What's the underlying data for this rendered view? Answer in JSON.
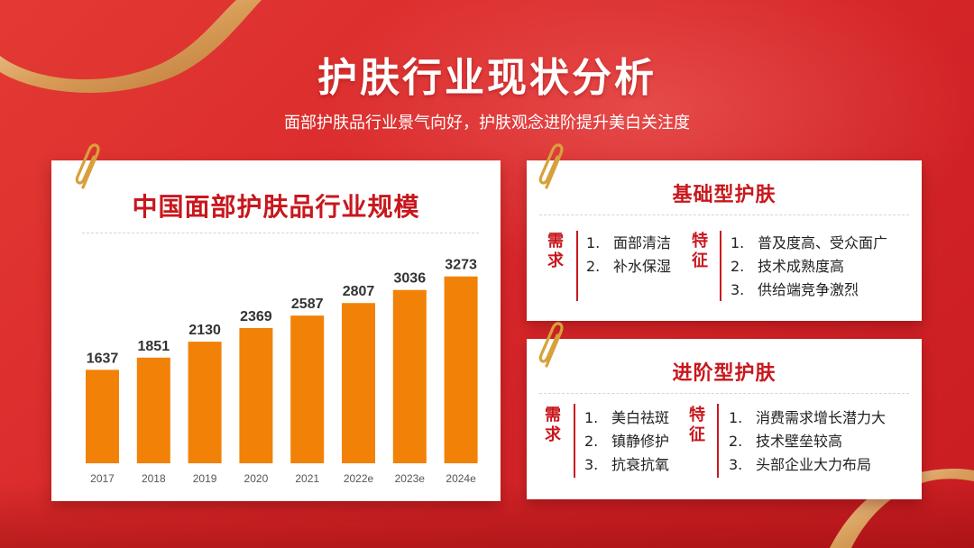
{
  "header": {
    "title": "护肤行业现状分析",
    "subtitle": "面部护肤品行业景气向好，护肤观念进阶提升美白关注度"
  },
  "chart_card": {
    "title": "中国面部护肤品行业规模"
  },
  "chart_data": {
    "type": "bar",
    "title": "中国面部护肤品行业规模",
    "categories": [
      "2017",
      "2018",
      "2019",
      "2020",
      "2021",
      "2022e",
      "2023e",
      "2024e"
    ],
    "values": [
      1637,
      1851,
      2130,
      2369,
      2587,
      2807,
      3036,
      3273
    ],
    "data_labels": true,
    "grid": false,
    "bar_color": "#f28107"
  },
  "basic_card": {
    "title": "基础型护肤",
    "demand": {
      "tag": "需求",
      "items": [
        {
          "num": "1.",
          "text": "面部清洁"
        },
        {
          "num": "2.",
          "text": "补水保湿"
        }
      ]
    },
    "feature": {
      "tag": "特征",
      "items": [
        {
          "num": "1.",
          "text": "普及度高、受众面广"
        },
        {
          "num": "2.",
          "text": "技术成熟度高"
        },
        {
          "num": "3.",
          "text": "供给端竞争激烈"
        }
      ]
    }
  },
  "advanced_card": {
    "title": "进阶型护肤",
    "demand": {
      "tag": "需求",
      "items": [
        {
          "num": "1.",
          "text": "美白祛斑"
        },
        {
          "num": "2.",
          "text": "镇静修护"
        },
        {
          "num": "3.",
          "text": "抗衰抗氧"
        }
      ]
    },
    "feature": {
      "tag": "特征",
      "items": [
        {
          "num": "1.",
          "text": "消费需求增长潜力大"
        },
        {
          "num": "2.",
          "text": "技术壁垒较高"
        },
        {
          "num": "3.",
          "text": "头部企业大力布局"
        }
      ]
    }
  },
  "colors": {
    "accent": "#c8171d",
    "bar": "#f28107",
    "background": "#d9282b"
  },
  "icons": [
    "paperclip-icon",
    "gold-ribbon"
  ]
}
